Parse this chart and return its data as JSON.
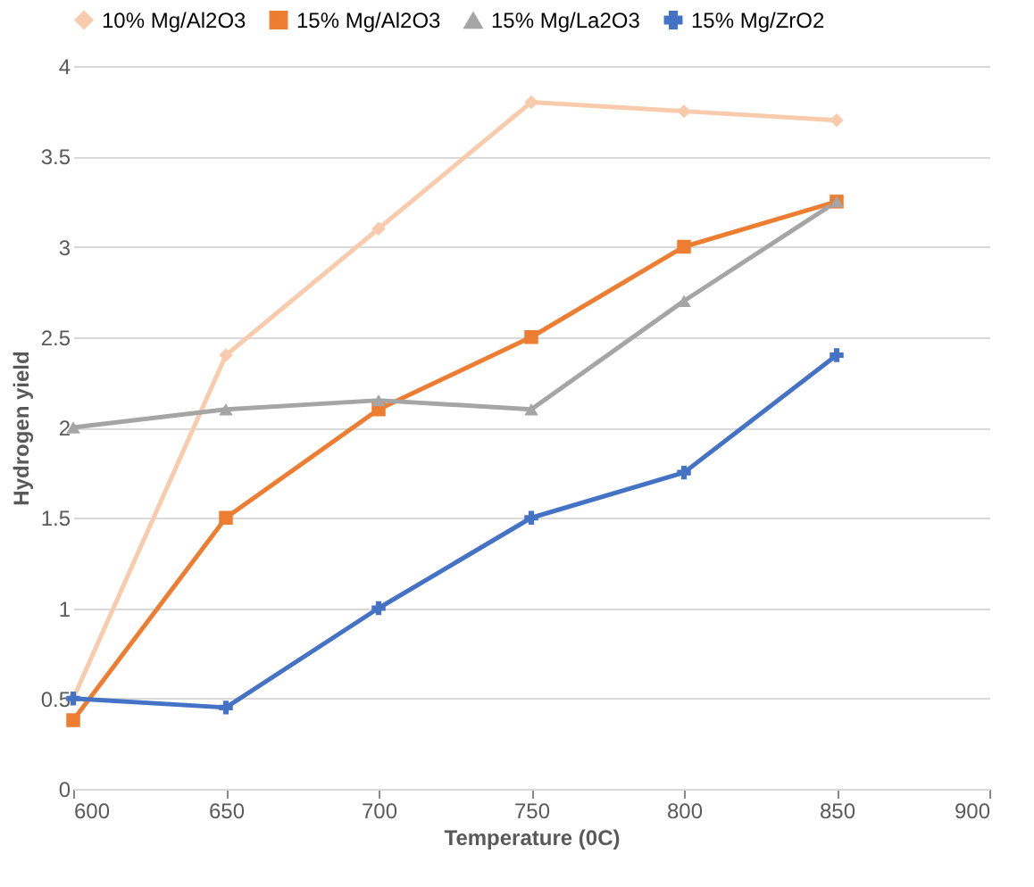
{
  "chart_data": {
    "type": "line",
    "xlabel": "Temperature (0C)",
    "ylabel": "Hydrogen yield",
    "x": [
      600,
      650,
      700,
      750,
      800,
      850
    ],
    "series": [
      {
        "name": "10% Mg/Al2O3",
        "color": "#f8cbad",
        "marker": "diamond",
        "values": [
          0.5,
          2.4,
          3.1,
          3.8,
          3.75,
          3.7
        ]
      },
      {
        "name": "15% Mg/Al2O3",
        "color": "#ed7d31",
        "marker": "square",
        "values": [
          0.38,
          1.5,
          2.1,
          2.5,
          3.0,
          3.25
        ]
      },
      {
        "name": "15% Mg/La2O3",
        "color": "#a5a5a5",
        "marker": "triangle",
        "values": [
          2.0,
          2.1,
          2.15,
          2.1,
          2.7,
          3.25
        ]
      },
      {
        "name": "15% Mg/ZrO2",
        "color": "#4472c4",
        "marker": "cross",
        "values": [
          0.5,
          0.45,
          1.0,
          1.5,
          1.75,
          2.4
        ]
      }
    ],
    "xlim": [
      600,
      900
    ],
    "xticks": [
      600,
      650,
      700,
      750,
      800,
      850,
      900
    ],
    "ylim": [
      0,
      4
    ],
    "yticks": [
      0,
      0.5,
      1,
      1.5,
      2,
      2.5,
      3,
      3.5,
      4
    ],
    "grid": "y",
    "legend": "top",
    "line_style": "solid"
  }
}
